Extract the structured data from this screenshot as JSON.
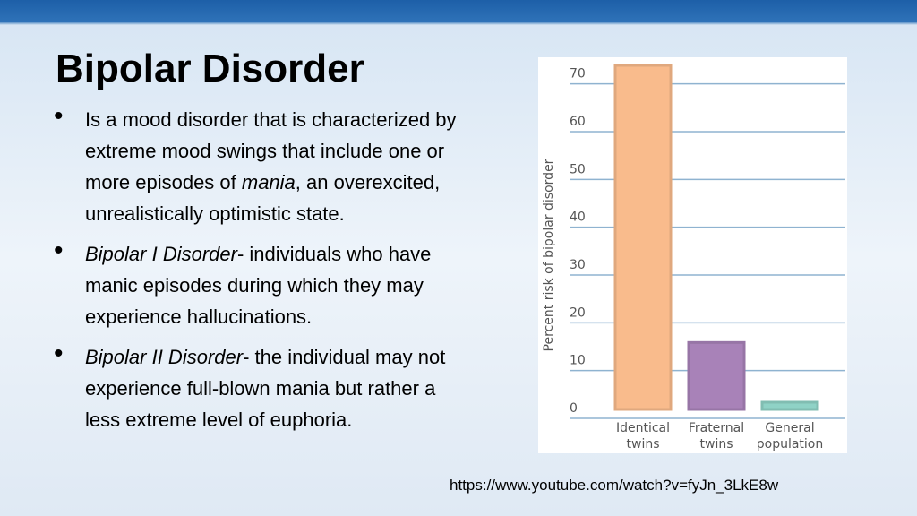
{
  "title": "Bipolar Disorder",
  "bullets": [
    [
      {
        "text": "Is a mood disorder that is characterized by extreme mood swings that include one or more episodes of "
      },
      {
        "text": "mania",
        "italic": true
      },
      {
        "text": ", an overexcited, unrealistically optimistic state."
      }
    ],
    [
      {
        "text": "Bipolar I Disorder",
        "italic": true
      },
      {
        "text": "- individuals who have manic episodes during which they may experience hallucinations."
      }
    ],
    [
      {
        "text": "Bipolar II Disorder",
        "italic": true
      },
      {
        "text": "- the individual may not experience full-blown mania but rather a less extreme level of euphoria."
      }
    ]
  ],
  "link": "https://www.youtube.com/watch?v=fyJn_3LkE8w",
  "chart_data": {
    "type": "bar",
    "ylabel": "Percent risk of bipolar disorder",
    "categories": [
      "Identical twins",
      "Fraternal twins",
      "General population"
    ],
    "values": [
      72,
      14,
      1.5
    ],
    "colors": [
      "#f9bb8c",
      "#a882b8",
      "#8fd2c6"
    ],
    "ylim": [
      0,
      72
    ],
    "yticks": [
      0,
      10,
      20,
      30,
      40,
      50,
      60,
      70
    ],
    "grid": true
  }
}
